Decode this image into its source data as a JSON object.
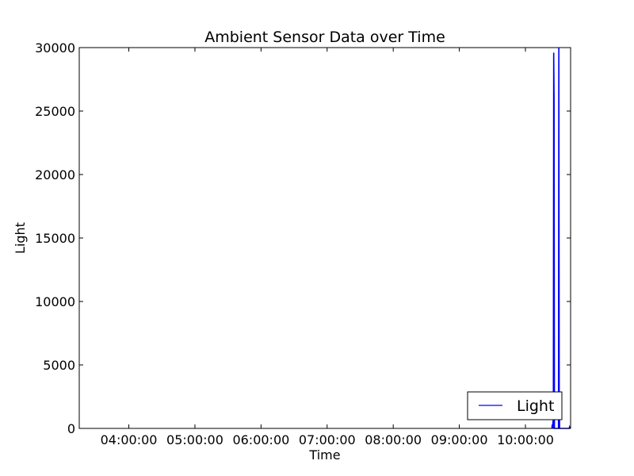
{
  "chart_data": {
    "type": "line",
    "title": "Ambient Sensor Data over Time",
    "xlabel": "Time",
    "ylabel": "Light",
    "x_is_time": true,
    "xlim": [
      "03:15:00",
      "10:41:00"
    ],
    "ylim": [
      0,
      30000
    ],
    "yticks": [
      0,
      5000,
      10000,
      15000,
      20000,
      25000,
      30000
    ],
    "xticks": [
      "04:00:00",
      "05:00:00",
      "06:00:00",
      "07:00:00",
      "08:00:00",
      "09:00:00",
      "10:00:00"
    ],
    "grid": false,
    "legend": {
      "placement": "lower-right",
      "entries": [
        "Light"
      ]
    },
    "series": [
      {
        "name": "Light",
        "color": "#0000ff",
        "x": [
          "10:24:00",
          "10:24:20",
          "10:24:40",
          "10:25:00",
          "10:25:20",
          "10:25:40",
          "10:26:00",
          "10:26:20",
          "10:26:40",
          "10:27:00",
          "10:27:20",
          "10:27:40",
          "10:28:00",
          "10:28:20",
          "10:28:40",
          "10:29:00",
          "10:29:20",
          "10:29:40",
          "10:30:00",
          "10:30:20",
          "10:30:40",
          "10:31:00",
          "10:31:20",
          "10:39:40",
          "10:40:00",
          "10:40:20"
        ],
        "y": [
          0,
          300,
          0,
          600,
          0,
          29600,
          26000,
          0,
          0,
          0,
          0,
          0,
          0,
          0,
          0,
          0,
          0,
          0,
          0,
          30000,
          3000,
          0,
          0,
          0,
          100,
          0
        ]
      }
    ]
  }
}
